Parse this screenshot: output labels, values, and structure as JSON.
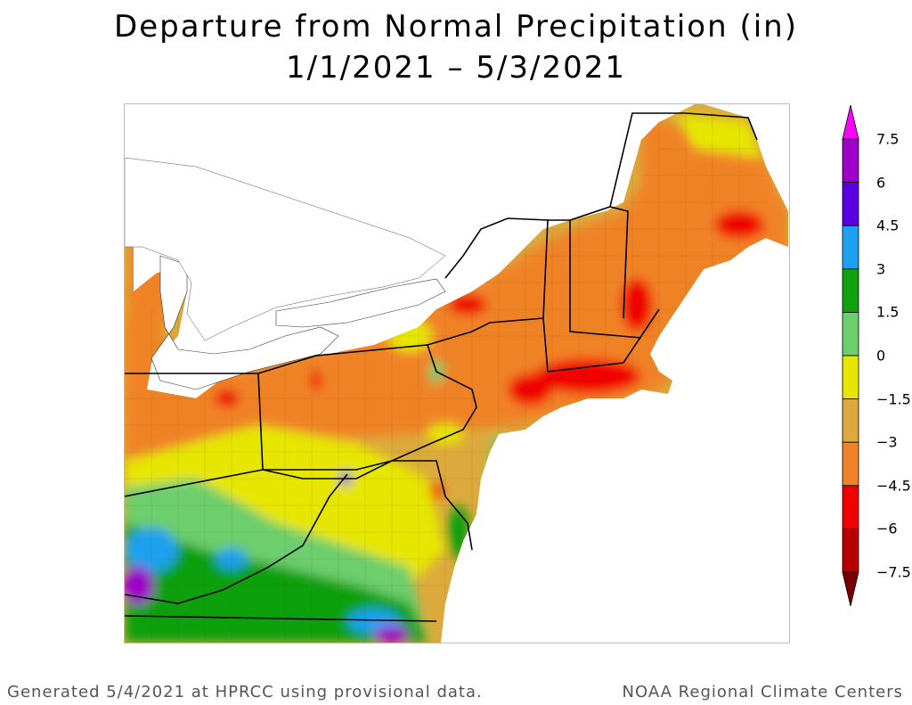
{
  "title": {
    "line1": "Departure from Normal Precipitation (in)",
    "line2": "1/1/2021 – 5/3/2021"
  },
  "legend": {
    "labels": [
      "7.5",
      "6",
      "4.5",
      "3",
      "1.5",
      "0",
      "−1.5",
      "−3",
      "−4.5",
      "−6",
      "−7.5"
    ],
    "colors": [
      "#ff00ff",
      "#9d00c8",
      "#5a00e0",
      "#1ea0f0",
      "#10a010",
      "#6cce6c",
      "#e6e600",
      "#dcaa3c",
      "#f08228",
      "#f00000",
      "#b40000",
      "#780000"
    ]
  },
  "footer": {
    "left": "Generated 5/4/2021 at HPRCC using provisional data.",
    "right": "NOAA Regional Climate Centers"
  }
}
